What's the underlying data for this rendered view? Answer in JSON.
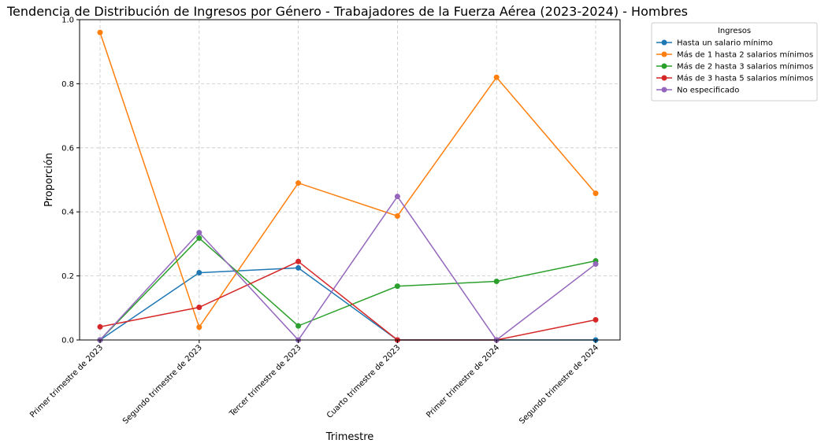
{
  "chart_data": {
    "type": "line",
    "title": "Tendencia de Distribución de Ingresos por Género - Trabajadores de la Fuerza Aérea (2023-2024) - Hombres",
    "xlabel": "Trimestre",
    "ylabel": "Proporción",
    "categories": [
      "Primer trimestre de 2023",
      "Segundo trimestre de 2023",
      "Tercer trimestre de 2023",
      "Cuarto trimestre de 2023",
      "Primer trimestre de 2024",
      "Segundo trimestre de 2024"
    ],
    "ylim": [
      0,
      1
    ],
    "yticks": [
      0.0,
      0.2,
      0.4,
      0.6,
      0.8,
      1.0
    ],
    "ytick_labels": [
      "0.0",
      "0.2",
      "0.4",
      "0.6",
      "0.8",
      "1.0"
    ],
    "grid": true,
    "legend_title": "Ingresos",
    "legend_position": "outside-top-right",
    "series": [
      {
        "name": "Hasta un salario mínimo",
        "color": "#1f77b4",
        "values": [
          0.0,
          0.21,
          0.225,
          0.0,
          0.0,
          0.0
        ]
      },
      {
        "name": "Más de 1 hasta 2 salarios mínimos",
        "color": "#ff7f0e",
        "values": [
          0.96,
          0.04,
          0.49,
          0.387,
          0.82,
          0.458
        ]
      },
      {
        "name": "Más de 2 hasta 3 salarios mínimos",
        "color": "#2ca02c",
        "values": [
          0.0,
          0.318,
          0.044,
          0.168,
          0.183,
          0.247
        ]
      },
      {
        "name": "Más de 3 hasta 5 salarios mínimos",
        "color": "#d62728",
        "values": [
          0.041,
          0.102,
          0.245,
          0.0,
          0.0,
          0.063
        ]
      },
      {
        "name": "No especificado",
        "color": "#9467bd",
        "values": [
          0.0,
          0.335,
          0.0,
          0.448,
          0.0,
          0.237
        ]
      }
    ]
  }
}
